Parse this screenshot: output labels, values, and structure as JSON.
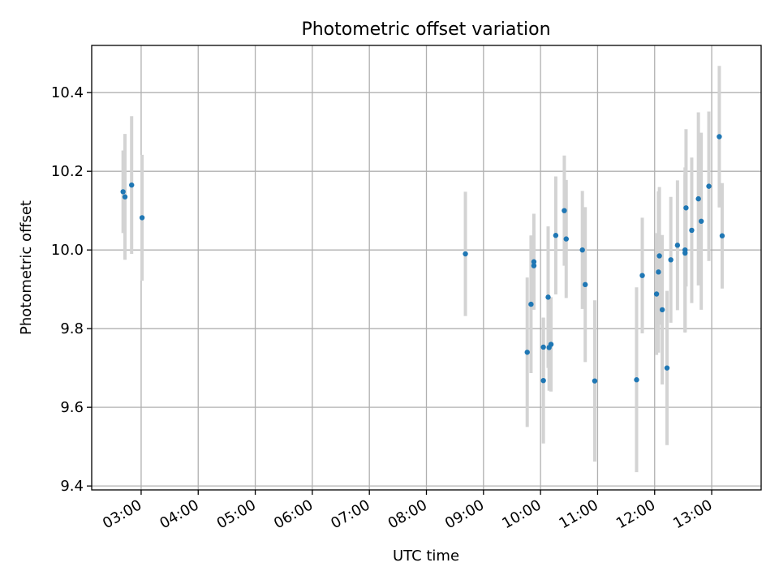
{
  "chart_data": {
    "type": "scatter",
    "title": "Photometric offset variation",
    "xlabel": "UTC time",
    "ylabel": "Photometric offset",
    "x_axis_type": "time",
    "xlim": [
      "02:08",
      "13:52"
    ],
    "ylim": [
      9.39,
      10.52
    ],
    "x_ticks": [
      "03:00",
      "04:00",
      "05:00",
      "06:00",
      "07:00",
      "08:00",
      "09:00",
      "10:00",
      "11:00",
      "12:00",
      "13:00"
    ],
    "y_ticks": [
      9.4,
      9.6,
      9.8,
      10.0,
      10.2,
      10.4
    ],
    "y_tick_labels": [
      "9.4",
      "9.6",
      "9.8",
      "10.0",
      "10.2",
      "10.4"
    ],
    "grid": true,
    "colors": {
      "point": "#1f77b4",
      "errorbar": "#d3d3d3"
    },
    "series": [
      {
        "points": [
          {
            "x": "02:41",
            "y": 10.148,
            "err": 0.105
          },
          {
            "x": "02:43",
            "y": 10.135,
            "err": 0.16
          },
          {
            "x": "02:50",
            "y": 10.165,
            "err": 0.175
          },
          {
            "x": "03:01",
            "y": 10.082,
            "err": 0.16
          },
          {
            "x": "08:41",
            "y": 9.99,
            "err": 0.158
          },
          {
            "x": "09:46",
            "y": 9.74,
            "err": 0.19
          },
          {
            "x": "09:50",
            "y": 9.862,
            "err": 0.175
          },
          {
            "x": "09:53",
            "y": 9.97,
            "err": 0.122
          },
          {
            "x": "09:53",
            "y": 9.96,
            "err": 0.09
          },
          {
            "x": "10:03",
            "y": 9.753,
            "err": 0.075
          },
          {
            "x": "10:03",
            "y": 9.668,
            "err": 0.16
          },
          {
            "x": "10:08",
            "y": 9.88,
            "err": 0.18
          },
          {
            "x": "10:09",
            "y": 9.752,
            "err": 0.11
          },
          {
            "x": "10:11",
            "y": 9.76,
            "err": 0.12
          },
          {
            "x": "10:16",
            "y": 10.037,
            "err": 0.15
          },
          {
            "x": "10:25",
            "y": 10.1,
            "err": 0.14
          },
          {
            "x": "10:27",
            "y": 10.028,
            "err": 0.15
          },
          {
            "x": "10:44",
            "y": 10.0,
            "err": 0.15
          },
          {
            "x": "10:47",
            "y": 9.912,
            "err": 0.197
          },
          {
            "x": "10:57",
            "y": 9.667,
            "err": 0.205
          },
          {
            "x": "11:41",
            "y": 9.67,
            "err": 0.235
          },
          {
            "x": "11:47",
            "y": 9.935,
            "err": 0.147
          },
          {
            "x": "12:02",
            "y": 9.888,
            "err": 0.155
          },
          {
            "x": "12:04",
            "y": 9.944,
            "err": 0.205
          },
          {
            "x": "12:05",
            "y": 9.985,
            "err": 0.175
          },
          {
            "x": "12:08",
            "y": 9.848,
            "err": 0.19
          },
          {
            "x": "12:13",
            "y": 9.7,
            "err": 0.196
          },
          {
            "x": "12:17",
            "y": 9.975,
            "err": 0.16
          },
          {
            "x": "12:24",
            "y": 10.012,
            "err": 0.165
          },
          {
            "x": "12:32",
            "y": 10.0,
            "err": 0.21
          },
          {
            "x": "12:32",
            "y": 9.992,
            "err": 0.2
          },
          {
            "x": "12:33",
            "y": 10.107,
            "err": 0.2
          },
          {
            "x": "12:39",
            "y": 10.05,
            "err": 0.185
          },
          {
            "x": "12:46",
            "y": 10.13,
            "err": 0.22
          },
          {
            "x": "12:49",
            "y": 10.073,
            "err": 0.225
          },
          {
            "x": "12:57",
            "y": 10.162,
            "err": 0.19
          },
          {
            "x": "13:08",
            "y": 10.288,
            "err": 0.18
          },
          {
            "x": "13:11",
            "y": 10.036,
            "err": 0.134
          }
        ]
      }
    ]
  }
}
